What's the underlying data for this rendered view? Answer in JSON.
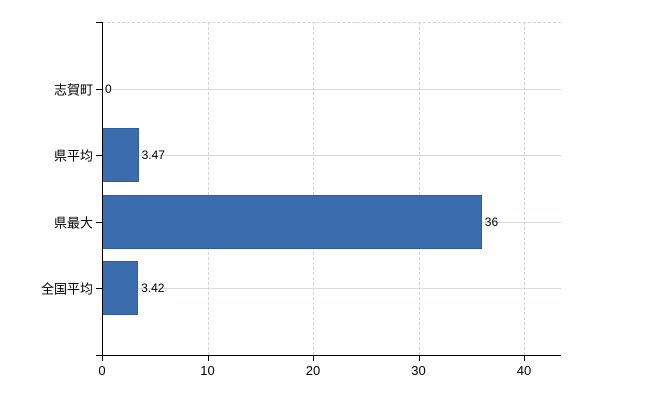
{
  "chart_data": {
    "type": "bar",
    "orientation": "horizontal",
    "title": "",
    "xlabel": "",
    "ylabel": "",
    "categories": [
      "志賀町",
      "県平均",
      "県最大",
      "全国平均"
    ],
    "values": [
      0,
      3.47,
      36,
      3.42
    ],
    "value_labels": [
      "0",
      "3.47",
      "36",
      "3.42"
    ],
    "x_tick_labels": [
      "0",
      "10",
      "20",
      "30",
      "40"
    ],
    "x_tick_values": [
      0,
      10,
      20,
      30,
      40
    ],
    "xlim": [
      0,
      43.5
    ],
    "legend": "none",
    "grid": {
      "vertical": "dashed",
      "horizontal": "solid",
      "top_border": "dashed"
    },
    "colors": {
      "bar_fill": "#3b6cae",
      "bar_border": "#2d5f9f",
      "axis": "#000000",
      "grid_vertical": "#d4d4d4",
      "grid_horizontal": "#d7ddd7",
      "text": "#000000",
      "background": "#ffffff"
    }
  }
}
